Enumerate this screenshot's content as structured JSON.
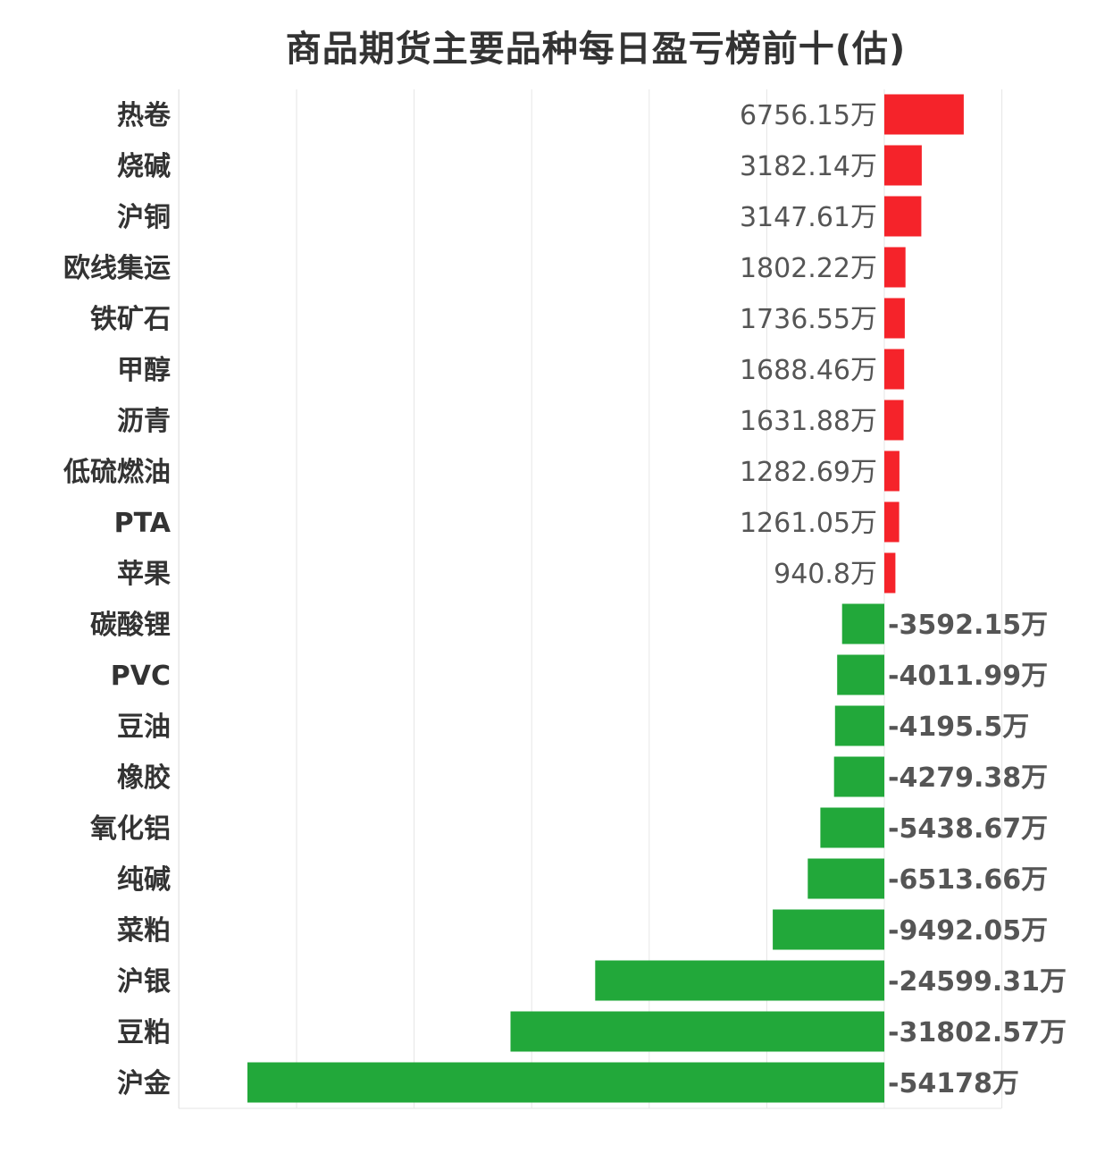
{
  "chart_data": {
    "type": "bar",
    "orientation": "horizontal",
    "title": "商品期货主要品种每日盈亏榜前十(估)",
    "unit_suffix": "万",
    "categories": [
      "热卷",
      "烧碱",
      "沪铜",
      "欧线集运",
      "铁矿石",
      "甲醇",
      "沥青",
      "低硫燃油",
      "PTA",
      "苹果",
      "碳酸锂",
      "PVC",
      "豆油",
      "橡胶",
      "氧化铝",
      "纯碱",
      "菜粕",
      "沪银",
      "豆粕",
      "沪金"
    ],
    "values": [
      6756.15,
      3182.14,
      3147.61,
      1802.22,
      1736.55,
      1688.46,
      1631.88,
      1282.69,
      1261.05,
      940.8,
      -3592.15,
      -4011.99,
      -4195.5,
      -4279.38,
      -5438.67,
      -6513.66,
      -9492.05,
      -24599.31,
      -31802.57,
      -54178
    ],
    "value_labels": [
      "6756.15万",
      "3182.14万",
      "3147.61万",
      "1802.22万",
      "1736.55万",
      "1688.46万",
      "1631.88万",
      "1282.69万",
      "1261.05万",
      "940.8万",
      "-3592.15万",
      "-4011.99万",
      "-4195.5万",
      "-4279.38万",
      "-5438.67万",
      "-6513.66万",
      "-9492.05万",
      "-24599.31万",
      "-31802.57万",
      "-54178万"
    ],
    "xlim": [
      -60000,
      10000
    ],
    "grid": true,
    "colors": {
      "positive": "#f5232a",
      "negative": "#22a83a",
      "grid": "#e6e6e6",
      "label": "#333333",
      "value": "#555555"
    }
  }
}
